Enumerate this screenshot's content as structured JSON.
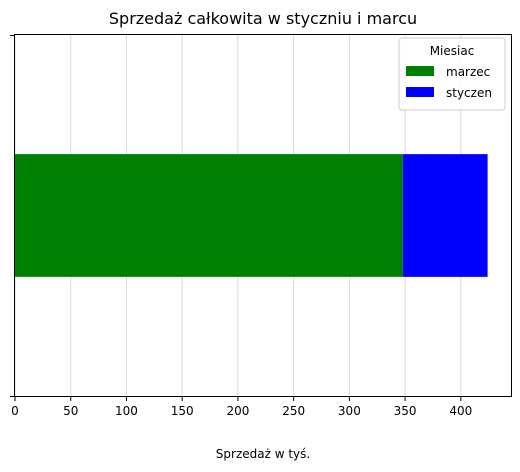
{
  "chart_data": {
    "type": "bar",
    "orientation": "horizontal",
    "stacked": true,
    "title": "Sprzedaż całkowita w styczniu i marcu",
    "xlabel": "Sprzedaż w tyś.",
    "ylabel": "",
    "xlim": [
      0,
      445
    ],
    "xticks": [
      0,
      50,
      100,
      150,
      200,
      250,
      300,
      350,
      400
    ],
    "grid": "x",
    "legend": {
      "title": "Miesiac",
      "placement": "top-right"
    },
    "categories": [
      ""
    ],
    "series": [
      {
        "name": "marzec",
        "values": [
          348
        ],
        "color": "#008000"
      },
      {
        "name": "styczen",
        "values": [
          76
        ],
        "color": "#0000ff"
      }
    ]
  }
}
